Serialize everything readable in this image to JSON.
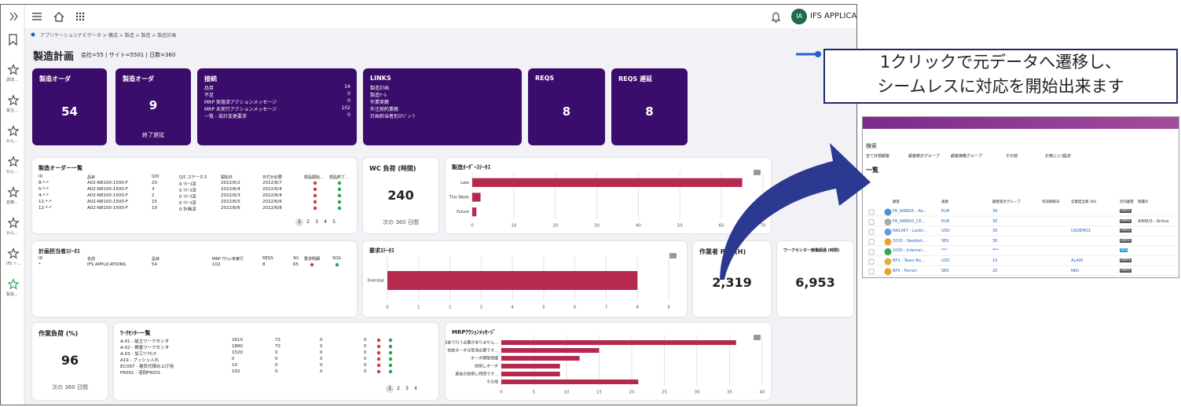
{
  "sidebar": {
    "items": [
      "調達...",
      "受注...",
      "かん...",
      "かん...",
      "倉庫...",
      "かん...",
      "IFS ト...",
      "製造..."
    ]
  },
  "header": {
    "user_initials": "IA",
    "user_name": "IFS APPLICATI"
  },
  "breadcrumb": "アプリケーションナビゲータ > 構成 > 製造 > 製造 > 製造計画",
  "page_title": "製造計画",
  "context": "会社=55 | サイト=5501 | 日数=360",
  "tiles": [
    {
      "title": "製造オーダ",
      "value": "54"
    },
    {
      "title": "製造オーダ",
      "value": "9",
      "caption": "終了遅延"
    },
    {
      "title": "接続",
      "items": [
        {
          "label": "品目",
          "value": "54"
        },
        {
          "label": "不足",
          "value": "0"
        },
        {
          "label": "MRP 実施済アクションメッセージ",
          "value": "0"
        },
        {
          "label": "MRP 未実行アクションメッセージ",
          "value": "102"
        },
        {
          "label": "一覧 - 設計変更要求",
          "value": "0"
        }
      ]
    },
    {
      "title": "LINKS",
      "items": [
        "製造計画",
        "製造ｹｰﾙ",
        "作業実績",
        "外注契約業務",
        "計画担当者別ｽｹｼﾞｭｰﾗ"
      ]
    },
    {
      "title": "REQS",
      "value": "8"
    },
    {
      "title": "REQS 遅延",
      "value": "8"
    }
  ],
  "kpis": [
    {
      "title": "WC 負荷 (時間)",
      "value": "240",
      "caption": "次の 360 日間"
    },
    {
      "title": "作業者 P/O (H)",
      "value": "2,319"
    },
    {
      "title": "ワークセンター稼働超過 (時間)",
      "value": "6,953"
    },
    {
      "title": "作業負荷 (%)",
      "value": "96",
      "caption": "次の 360 日間"
    }
  ],
  "order_list": {
    "title": "製造オーダー一覧",
    "columns": [
      "ID",
      "品目",
      "Q/D",
      "Q/C ステータス",
      "開始日",
      "日付が必要",
      "部品開始...",
      "部品終了..."
    ],
    "rows": [
      [
        "8-*-*",
        "A02-N8100-1500-F",
        "20",
        "0 ﾘﾘｰｽ済",
        "2022/6/2",
        "2022/6/7"
      ],
      [
        "5-*-*",
        "A02-N8100-1500-F",
        "3",
        "0 ﾘﾘｰｽ済",
        "2022/6/4",
        "2022/6/4"
      ],
      [
        "4-*-*",
        "A02-N8100-1500-F",
        "2",
        "0 ﾘﾘｰｽ済",
        "2022/6/3",
        "2022/6/4"
      ],
      [
        "11-*-*",
        "A02-N8100-1500-F",
        "15",
        "0 ﾘﾘｰｽ済",
        "2022/6/5",
        "2022/6/6"
      ],
      [
        "12-*-*",
        "A02-N8100-1500-F",
        "10",
        "0 計画済",
        "2022/6/6",
        "2022/6/8"
      ]
    ],
    "pages": [
      "1",
      "2",
      "3",
      "4",
      "5"
    ]
  },
  "planner_status": {
    "title": "計画担当者ｽﾃｰﾀｽ",
    "columns": [
      "ID",
      "名前",
      "品目",
      "MRP ｱｸｼｮﾝ未実行",
      "REQS",
      "SO",
      "要求明細",
      "SO/L"
    ],
    "rows": [
      [
        "*",
        "IFS APPLICATIONS",
        "54",
        "102",
        "8",
        "65"
      ]
    ]
  },
  "workcenter_list": {
    "title": "ﾜｰｸｾﾝﾀｰ一覧",
    "rows": [
      [
        "A-01 - 組立ワークセンタ",
        "2610",
        "72",
        "0",
        "0"
      ],
      [
        "A-02 - 検査ワークセンタ",
        "1880",
        "72",
        "0",
        "0"
      ],
      [
        "A-03 - 加工ﾜｰｸｾﾝﾀ",
        "1520",
        "0",
        "0",
        "0"
      ],
      [
        "A19 - プッシュ入れ",
        "0",
        "0",
        "0",
        "0"
      ],
      [
        "ECOST - 電気代積み上げ用",
        "10",
        "0",
        "0",
        "0"
      ],
      [
        "FR001 - 溶剤FR001",
        "102",
        "0",
        "0",
        "0"
      ]
    ],
    "pages": [
      "1",
      "2",
      "3",
      "4"
    ]
  },
  "chart_data": [
    {
      "type": "bar",
      "orientation": "horizontal",
      "title": "製造ｵｰﾀﾞｰｽﾃｰﾀｽ",
      "categories": [
        "Late",
        "This Week",
        "Future"
      ],
      "values": [
        65,
        2,
        1
      ],
      "color": "#b5294e",
      "xlim": [
        0,
        70
      ],
      "xticks": [
        0,
        10,
        20,
        30,
        40,
        50,
        60,
        70
      ],
      "grid": true
    },
    {
      "type": "bar",
      "orientation": "horizontal",
      "title": "要求ｽﾃｰﾀｽ",
      "categories": [
        "Overdue"
      ],
      "values": [
        8
      ],
      "color": "#b5294e",
      "xlim": [
        0,
        9
      ],
      "xticks": [
        0,
        1,
        2,
        3,
        4,
        5,
        6,
        7,
        8,
        9
      ],
      "grid": true
    },
    {
      "type": "bar",
      "orientation": "horizontal",
      "title": "MRPｱｸｼｮﾝﾒｯｾｰｼﾞ",
      "categories": [
        "最後で行う必要がありません...",
        "供給オーダは取消必要です...",
        "オーダ期限保護",
        "前倒しオーダ",
        "最後の前倒し時間です...",
        "その他"
      ],
      "values": [
        36,
        15,
        12,
        9,
        9,
        21
      ],
      "color": "#b5294e",
      "xlim": [
        0,
        40
      ],
      "xticks": [
        0,
        5,
        10,
        15,
        20,
        25,
        30,
        35,
        40
      ],
      "grid": true
    }
  ],
  "callout": {
    "lines": [
      "1クリックで元データへ遷移し、",
      "シームレスに対応を開始出来ます"
    ]
  },
  "inset": {
    "title": "検索",
    "list_label": "一覧",
    "toolbar": [
      "全て外部顧客",
      "顧客統計グループ",
      "顧客価格グループ",
      "その他",
      "お気に入り",
      "設定"
    ],
    "columns": [
      "顧客",
      "通貨",
      "顧客統計グループ",
      "有効期限日",
      "営業担当者 (ID)",
      "社内顧客",
      "階層の"
    ],
    "rows": [
      [
        "FR_AIRBUS - Air...",
        "EUR",
        "30",
        "",
        "",
        "UNAX",
        ""
      ],
      [
        "FR_AIRBUS_CE...",
        "EUR",
        "30",
        "",
        "",
        "UNAX",
        "AIRBUS - Airbus"
      ],
      [
        "NA1067 - Lockh...",
        "USD",
        "30",
        "",
        "USDEMO1",
        "UNAX",
        ""
      ],
      [
        "1010 - Swedish...",
        "SEK",
        "30",
        "",
        "",
        "UNAX",
        ""
      ],
      [
        "1020 - Internal...",
        "***",
        "***",
        "",
        "",
        "SEL",
        ""
      ],
      [
        "BP1 - Team Ba...",
        "USD",
        "10",
        "",
        "ALAIN",
        "UNAX",
        ""
      ],
      [
        "BP5 - Ferrari",
        "SEK",
        "20",
        "",
        "NIKI",
        "UNAX",
        ""
      ]
    ]
  }
}
